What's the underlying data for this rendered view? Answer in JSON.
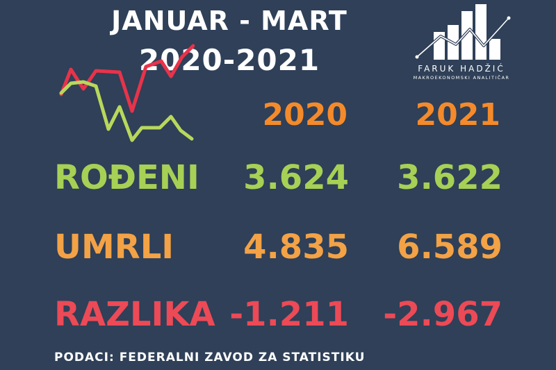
{
  "title": {
    "line1": "JANUAR - MART",
    "line2": "2020-2021"
  },
  "logo": {
    "name": "FARUK HADŽIĆ",
    "subtitle": "MAKROEKONOMSKI ANALITIČAR"
  },
  "years": [
    "2020",
    "2021"
  ],
  "rows": [
    {
      "label": "ROĐENI",
      "v2020": "3.624",
      "v2021": "3.622",
      "color": "#a6d155"
    },
    {
      "label": "UMRLI",
      "v2020": "4.835",
      "v2021": "6.589",
      "color": "#f3a246"
    },
    {
      "label": "RAZLIKA",
      "v2020": "-1.211",
      "v2021": "-2.967",
      "color": "#ec4a56"
    }
  ],
  "source": "PODACI: FEDERALNI ZAVOD ZA STATISTIKU",
  "colors": {
    "background": "#2f4058",
    "year": "#f58a2a",
    "deco_red_line": "#e8334a",
    "deco_green_line": "#b8d85c"
  },
  "icons": {
    "decor": "line-chart-icon",
    "logo": "bar-chart-logo-icon"
  }
}
